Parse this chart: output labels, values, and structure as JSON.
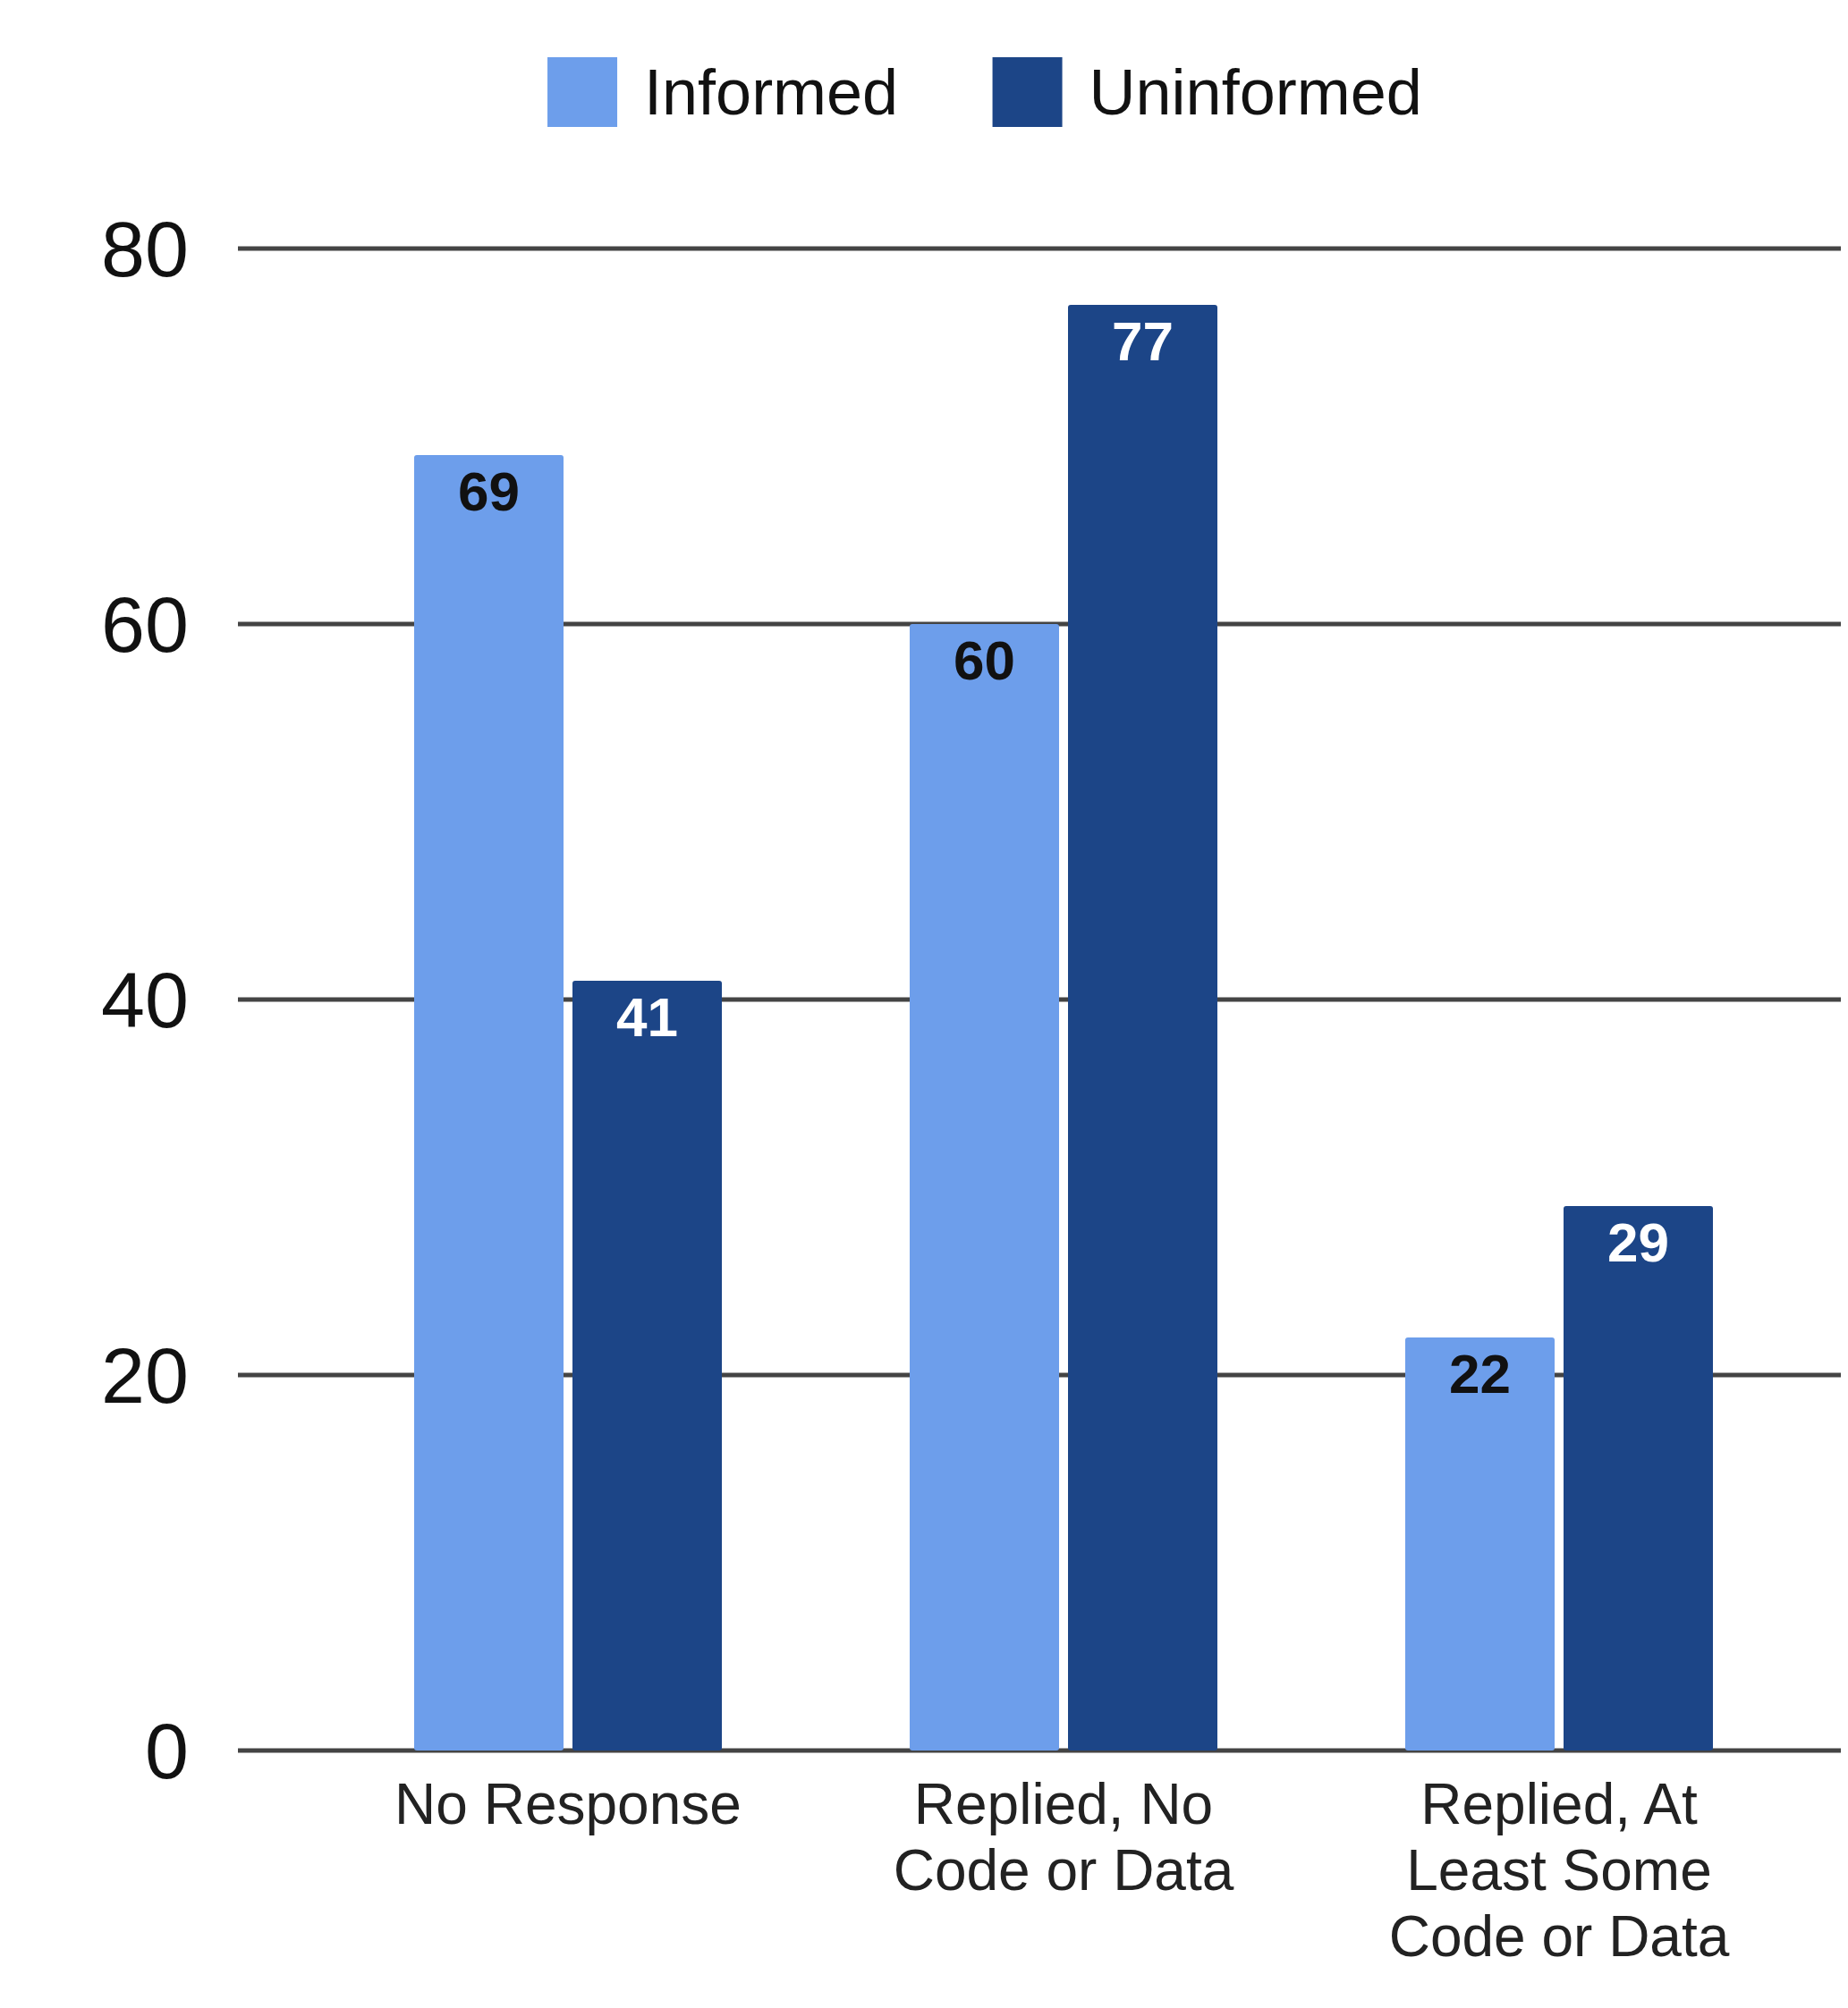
{
  "chart_data": {
    "type": "bar",
    "categories": [
      "No Response",
      "Replied, No Code or Data",
      "Replied, At Least Some Code or Data"
    ],
    "series": [
      {
        "name": "Informed",
        "color": "#6d9eeb",
        "values": [
          69,
          60,
          22
        ]
      },
      {
        "name": "Uninformed",
        "color": "#1c4587",
        "values": [
          41,
          77,
          29
        ]
      }
    ],
    "ylim": [
      0,
      80
    ],
    "yticks": [
      0,
      20,
      40,
      60,
      80
    ],
    "grid": "y",
    "legend": "top",
    "data_labels": true
  }
}
